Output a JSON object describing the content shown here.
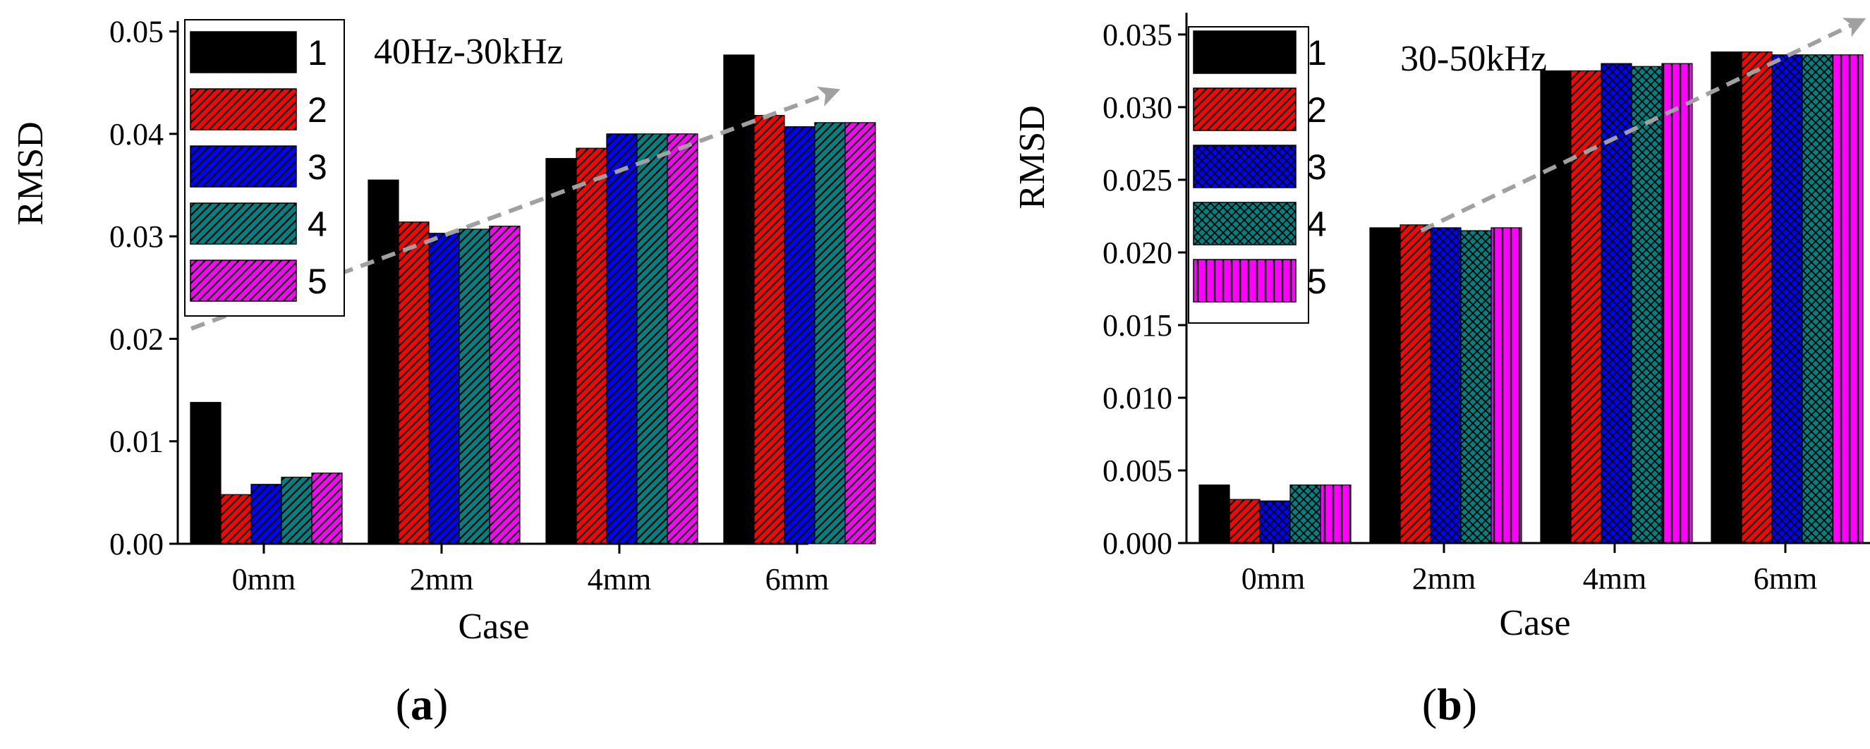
{
  "colors": {
    "1": "#000000",
    "2": "#ff0000",
    "3": "#0000ff",
    "4": "#008080",
    "5": "#ff00ff",
    "trend_arrow": "#a0a0a0"
  },
  "chart_data": [
    {
      "type": "bar",
      "panel_label": "a",
      "annotation": "40Hz-30kHz",
      "xlabel": "Case",
      "ylabel": "RMSD",
      "categories": [
        "0mm",
        "2mm",
        "4mm",
        "6mm"
      ],
      "ylim": [
        0,
        0.051
      ],
      "yticks": [
        "0.00",
        "0.01",
        "0.02",
        "0.03",
        "0.04",
        "0.05"
      ],
      "legend_position": "top-left",
      "grid": false,
      "trend_arrow": true,
      "series": [
        {
          "name": "1",
          "values": [
            0.0138,
            0.0355,
            0.0376,
            0.0477
          ]
        },
        {
          "name": "2",
          "values": [
            0.0048,
            0.0314,
            0.0386,
            0.0418
          ]
        },
        {
          "name": "3",
          "values": [
            0.0058,
            0.0303,
            0.04,
            0.0407
          ]
        },
        {
          "name": "4",
          "values": [
            0.0065,
            0.0307,
            0.04,
            0.0411
          ]
        },
        {
          "name": "5",
          "values": [
            0.0069,
            0.031,
            0.04,
            0.0411
          ]
        }
      ]
    },
    {
      "type": "bar",
      "panel_label": "b",
      "annotation": "30-50kHz",
      "xlabel": "Case",
      "ylabel": "RMSD",
      "categories": [
        "0mm",
        "2mm",
        "4mm",
        "6mm"
      ],
      "ylim": [
        0,
        0.0365
      ],
      "yticks": [
        "0.000",
        "0.005",
        "0.010",
        "0.015",
        "0.020",
        "0.025",
        "0.030",
        "0.035"
      ],
      "legend_position": "top-left",
      "grid": false,
      "trend_arrow": true,
      "series": [
        {
          "name": "1",
          "values": [
            0.004,
            0.0217,
            0.0325,
            0.0338
          ]
        },
        {
          "name": "2",
          "values": [
            0.003,
            0.0219,
            0.0325,
            0.0338
          ]
        },
        {
          "name": "3",
          "values": [
            0.0029,
            0.0217,
            0.033,
            0.0336
          ]
        },
        {
          "name": "4",
          "values": [
            0.004,
            0.0215,
            0.0328,
            0.0336
          ]
        },
        {
          "name": "5",
          "values": [
            0.004,
            0.0217,
            0.033,
            0.0336
          ]
        }
      ]
    }
  ]
}
